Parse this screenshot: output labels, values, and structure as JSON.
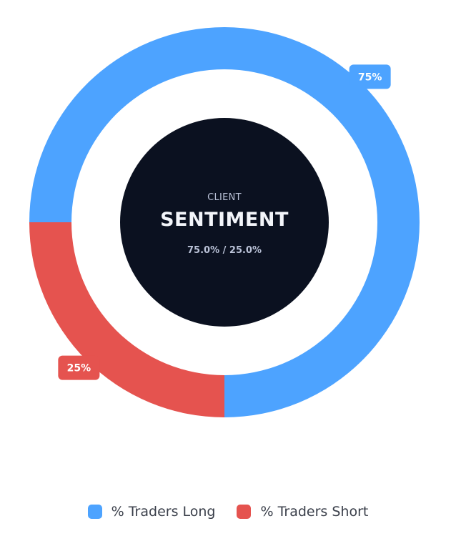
{
  "chart_data": {
    "type": "pie",
    "categories": [
      "% Traders Long",
      "% Traders Short"
    ],
    "values": [
      75,
      25
    ],
    "slice_labels": [
      "75%",
      "25%"
    ],
    "colors": [
      "#4da3ff",
      "#e5534f"
    ],
    "center": {
      "small_label": "CLIENT",
      "title": "SENTIMENT",
      "ratio": "75.0% / 25.0%",
      "background": "#0b1120"
    },
    "legend_position": "bottom"
  }
}
